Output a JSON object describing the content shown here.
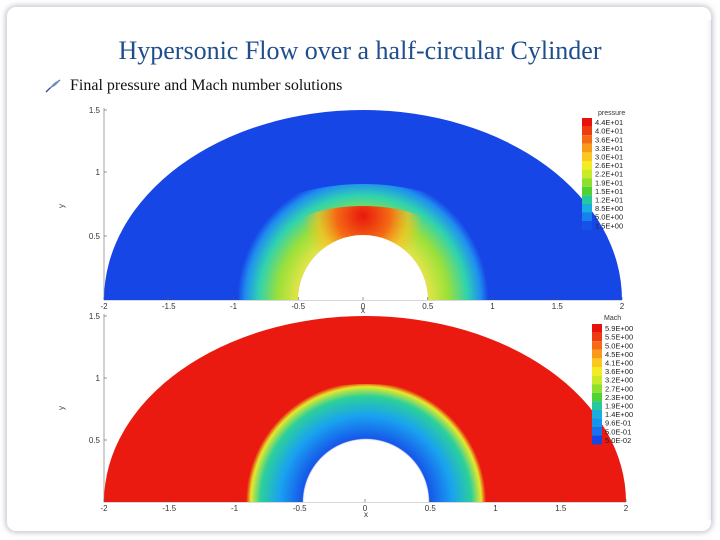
{
  "slide": {
    "title": "Hypersonic Flow over a half-circular Cylinder",
    "bullet": "Final pressure and Mach number solutions",
    "bullet_icon": "feather-icon"
  },
  "plots": [
    {
      "name": "pressure",
      "legend_title": "pressure",
      "legend_labels": [
        "4.4E+01",
        "4.0E+01",
        "3.6E+01",
        "3.3E+01",
        "3.0E+01",
        "2.6E+01",
        "2.2E+01",
        "1.9E+01",
        "1.5E+01",
        "1.2E+01",
        "8.5E+00",
        "5.0E+00",
        "1.5E+00"
      ],
      "legend_colors": [
        "#e8120c",
        "#ef3b10",
        "#f56a14",
        "#f89a1a",
        "#fac820",
        "#f3ec22",
        "#c9ea26",
        "#8ee02c",
        "#4fd334",
        "#27c89e",
        "#19aee0",
        "#1680f0",
        "#1652e8"
      ],
      "x_ticks": [
        "-2",
        "-1.5",
        "-1",
        "-0.5",
        "0",
        "0.5",
        "1",
        "1.5",
        "2"
      ],
      "y_ticks": [
        "1.5",
        "1",
        "0.5"
      ],
      "xlabel": "x",
      "ylabel": "y",
      "colors": {
        "field": "#1746e6",
        "stag": "#e8180c",
        "hot": "#f6a018",
        "warm": "#8fe02c",
        "cool": "#3ad4b8"
      }
    },
    {
      "name": "mach",
      "legend_title": "Mach",
      "legend_labels": [
        "5.9E+00",
        "5.5E+00",
        "5.0E+00",
        "4.5E+00",
        "4.1E+00",
        "3.6E+00",
        "3.2E+00",
        "2.7E+00",
        "2.3E+00",
        "1.9E+00",
        "1.4E+00",
        "9.6E-01",
        "5.0E-01",
        "5.0E-02"
      ],
      "legend_colors": [
        "#e8120c",
        "#ef3b10",
        "#f56a14",
        "#f89a1a",
        "#fac820",
        "#f3ec22",
        "#c9ea26",
        "#8ee02c",
        "#4fd334",
        "#27c89e",
        "#19aee0",
        "#1496f0",
        "#1672ee",
        "#1646e6"
      ],
      "x_ticks": [
        "-2",
        "-1.5",
        "-1",
        "-0.5",
        "0",
        "0.5",
        "1",
        "1.5",
        "2"
      ],
      "y_ticks": [
        "1.5",
        "1",
        "0.5"
      ],
      "xlabel": "x",
      "ylabel": "y",
      "colors": {
        "field": "#ea1a10",
        "inner": "#12a4f0",
        "core": "#1656ea",
        "edge": "#2fcf5a"
      }
    }
  ]
}
